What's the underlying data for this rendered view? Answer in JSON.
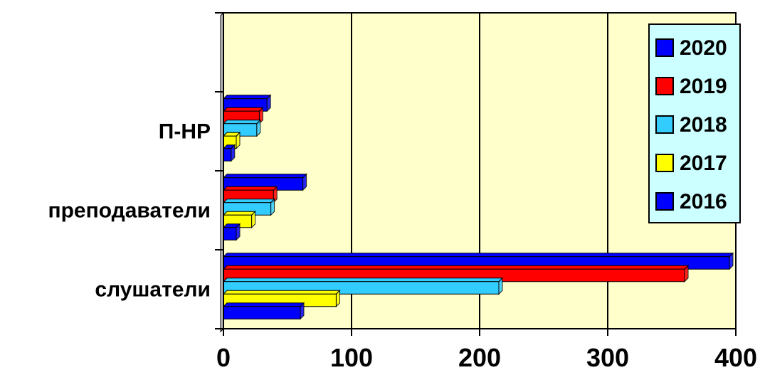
{
  "chart_data": {
    "type": "bar",
    "orientation": "horizontal",
    "categories": [
      "П-НР",
      "преподаватели",
      "слушатели"
    ],
    "series": [
      {
        "name": "2016",
        "color": "#0000ff",
        "values": [
          6,
          10,
          60
        ]
      },
      {
        "name": "2017",
        "color": "#ffff00",
        "values": [
          10,
          22,
          88
        ]
      },
      {
        "name": "2018",
        "color": "#33ccff",
        "values": [
          26,
          37,
          215
        ]
      },
      {
        "name": "2019",
        "color": "#ff0000",
        "values": [
          28,
          39,
          360
        ]
      },
      {
        "name": "2020",
        "color": "#0000ff",
        "values": [
          34,
          62,
          395
        ]
      }
    ],
    "xlim": [
      0,
      400
    ],
    "xticks": [
      "0",
      "100",
      "200",
      "300",
      "400"
    ],
    "xtick_values": [
      0,
      100,
      200,
      300,
      400
    ],
    "plot_background": "#ffffcc",
    "legend_background": "#ccffff",
    "grid": true,
    "legend_position": "top-right",
    "title": "",
    "xlabel": "",
    "ylabel": ""
  }
}
